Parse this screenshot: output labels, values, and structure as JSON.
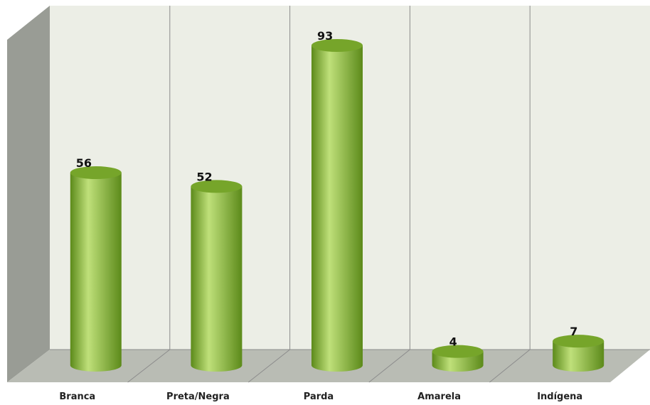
{
  "chart_data": {
    "type": "bar",
    "style": "3d-cylinder",
    "categories": [
      "Branca",
      "Preta/Negra",
      "Parda",
      "Amarela",
      "Indígena"
    ],
    "values": [
      56,
      52,
      93,
      4,
      7
    ],
    "ylim": [
      0,
      100
    ],
    "grid": true,
    "legend": "none",
    "colors": {
      "bar_fill": "#8dbb3c",
      "bar_dark": "#5c8a1a",
      "bar_light": "#bfe07a",
      "bar_top": "#76a52a",
      "wall": "#eceee6",
      "floor": "#b9bcb4",
      "side_wall": "#999c95",
      "grid": "#8c8c8c"
    }
  }
}
